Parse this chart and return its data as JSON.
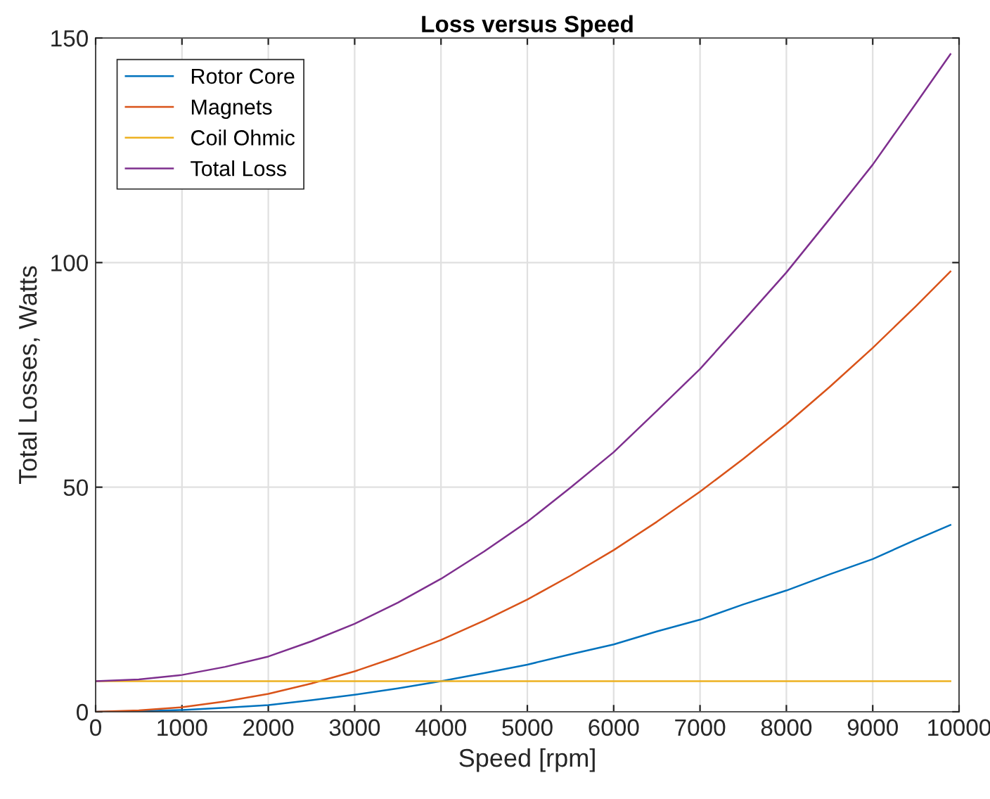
{
  "chart_data": {
    "type": "line",
    "title": "Loss versus Speed",
    "xlabel": "Speed [rpm]",
    "ylabel": "Total Losses, Watts",
    "x": [
      0,
      500,
      1000,
      1500,
      2000,
      2500,
      3000,
      3500,
      4000,
      4500,
      5000,
      5500,
      6000,
      6500,
      7000,
      7500,
      8000,
      8500,
      9000,
      9500,
      9900
    ],
    "series": [
      {
        "name": "Rotor Core",
        "color": "#0072bd",
        "values": [
          0,
          0.1,
          0.4,
          0.9,
          1.5,
          2.6,
          3.8,
          5.2,
          6.8,
          8.6,
          10.5,
          12.8,
          15,
          17.9,
          20.5,
          23.9,
          27,
          30.6,
          34,
          38.3,
          41.6
        ]
      },
      {
        "name": "Magnets",
        "color": "#d95319",
        "values": [
          0,
          0.3,
          1,
          2.3,
          4,
          6.3,
          9,
          12.3,
          16,
          20.3,
          25,
          30.3,
          36,
          42.3,
          49,
          56.3,
          64,
          72.3,
          81,
          90.3,
          98
        ]
      },
      {
        "name": "Coil Ohmic",
        "color": "#edb120",
        "values": [
          6.8,
          6.8,
          6.8,
          6.8,
          6.8,
          6.8,
          6.8,
          6.8,
          6.8,
          6.8,
          6.8,
          6.8,
          6.8,
          6.8,
          6.8,
          6.8,
          6.8,
          6.8,
          6.8,
          6.8,
          6.8
        ]
      },
      {
        "name": "Total Loss",
        "color": "#7e2f8e",
        "values": [
          6.8,
          7.2,
          8.2,
          10,
          12.3,
          15.7,
          19.6,
          24.3,
          29.6,
          35.7,
          42.3,
          49.9,
          57.8,
          67,
          76.3,
          87,
          97.8,
          109.7,
          121.8,
          135.4,
          146.4
        ]
      }
    ],
    "xlim": [
      0,
      10000
    ],
    "xticks": [
      0,
      1000,
      2000,
      3000,
      4000,
      5000,
      6000,
      7000,
      8000,
      9000,
      10000
    ],
    "ylim": [
      0,
      150
    ],
    "yticks": [
      0,
      50,
      100,
      150
    ],
    "grid": true,
    "legend": "top left",
    "marker": "none",
    "line_style": "solid"
  }
}
